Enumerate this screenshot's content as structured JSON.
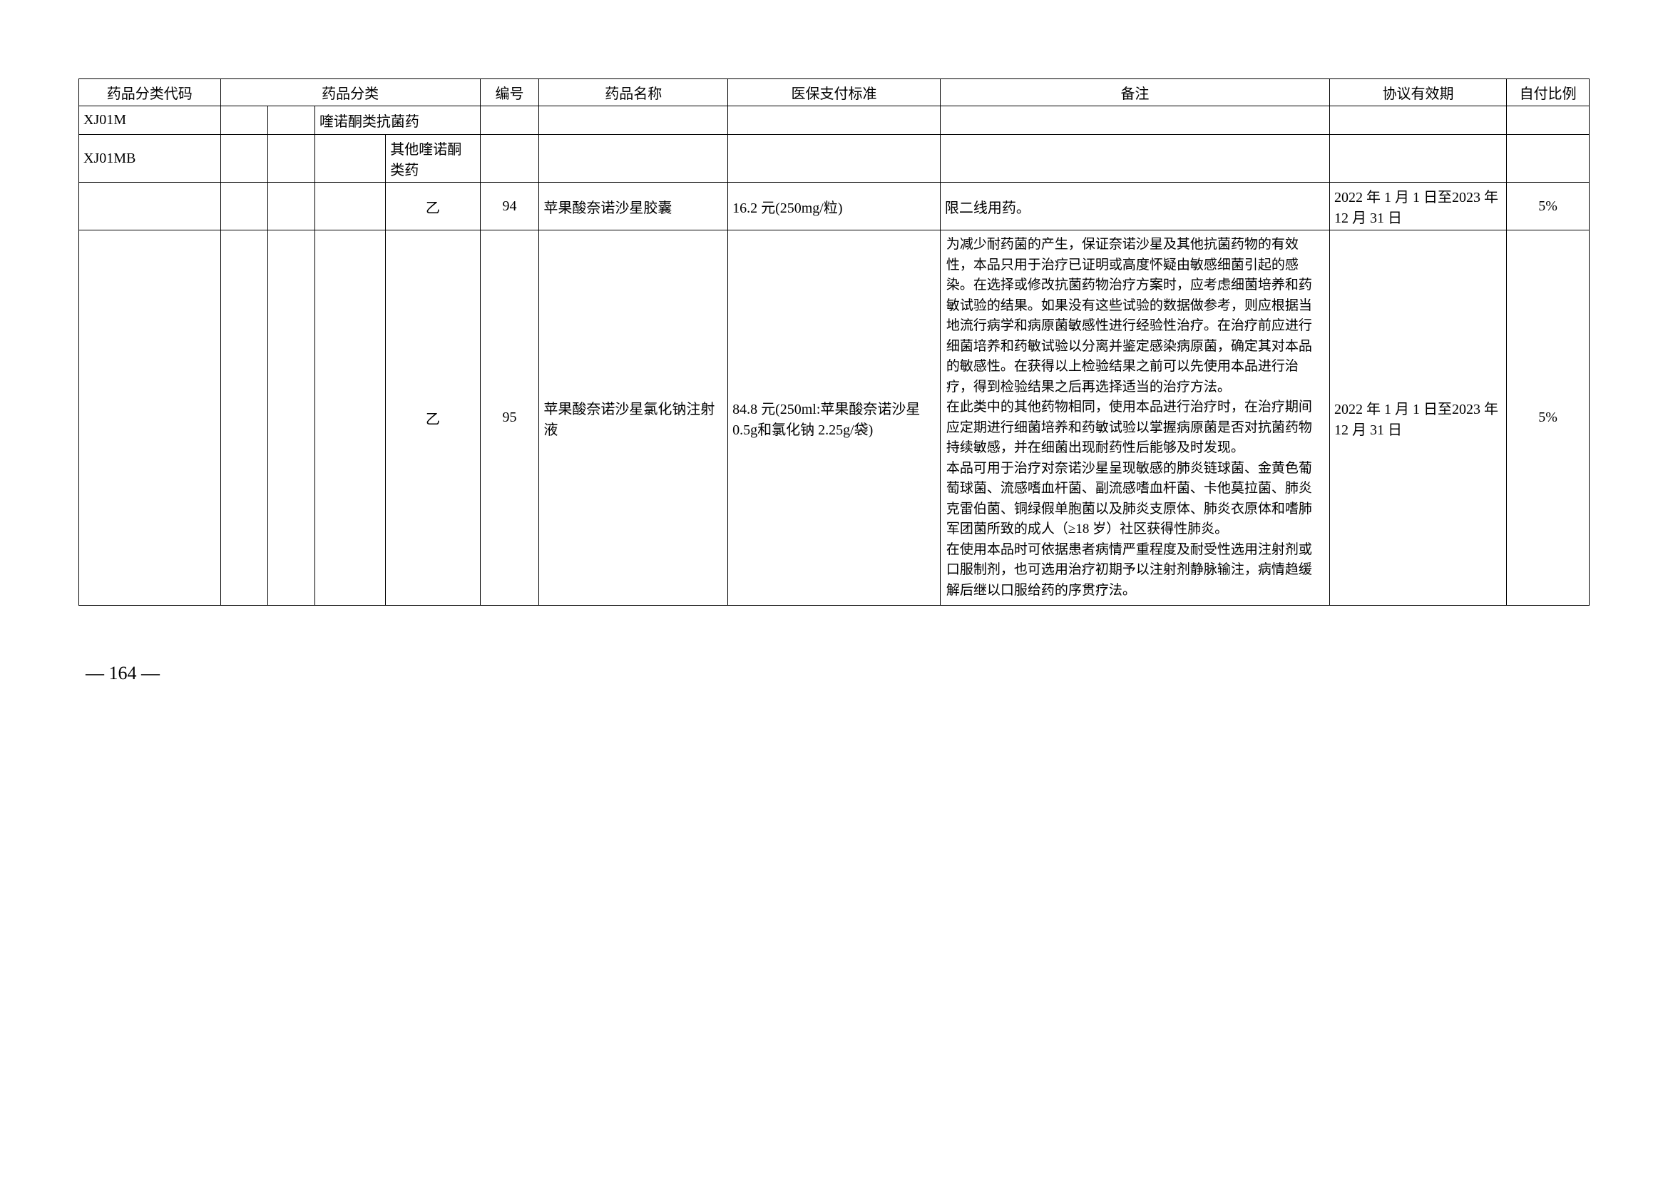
{
  "headers": {
    "code": "药品分类代码",
    "category": "药品分类",
    "num": "编号",
    "name": "药品名称",
    "std": "医保支付标准",
    "remark": "备注",
    "period": "协议有效期",
    "ratio": "自付比例"
  },
  "rows": {
    "r1": {
      "code": "XJ01M",
      "cat3": "喹诺酮类抗菌药"
    },
    "r2": {
      "code": "XJ01MB",
      "cat4": "其他喹诺酮类药"
    },
    "r3": {
      "class": "乙",
      "num": "94",
      "name": "苹果酸奈诺沙星胶囊",
      "std": "16.2 元(250mg/粒)",
      "remark": "限二线用药。",
      "period": "2022 年 1 月 1 日至2023 年 12 月 31 日",
      "ratio": "5%"
    },
    "r4": {
      "class": "乙",
      "num": "95",
      "name": "苹果酸奈诺沙星氯化钠注射液",
      "std": "84.8 元(250ml:苹果酸奈诺沙星 0.5g和氯化钠 2.25g/袋)",
      "remark": "为减少耐药菌的产生，保证奈诺沙星及其他抗菌药物的有效性，本品只用于治疗已证明或高度怀疑由敏感细菌引起的感染。在选择或修改抗菌药物治疗方案时，应考虑细菌培养和药敏试验的结果。如果没有这些试验的数据做参考，则应根据当地流行病学和病原菌敏感性进行经验性治疗。在治疗前应进行细菌培养和药敏试验以分离并鉴定感染病原菌，确定其对本品的敏感性。在获得以上检验结果之前可以先使用本品进行治疗，得到检验结果之后再选择适当的治疗方法。\n在此类中的其他药物相同，使用本品进行治疗时，在治疗期间应定期进行细菌培养和药敏试验以掌握病原菌是否对抗菌药物持续敏感，并在细菌出现耐药性后能够及时发现。\n本品可用于治疗对奈诺沙星呈现敏感的肺炎链球菌、金黄色葡萄球菌、流感嗜血杆菌、副流感嗜血杆菌、卡他莫拉菌、肺炎克雷伯菌、铜绿假单胞菌以及肺炎支原体、肺炎衣原体和嗜肺军团菌所致的成人（≥18 岁）社区获得性肺炎。\n在使用本品时可依据患者病情严重程度及耐受性选用注射剂或口服制剂，也可选用治疗初期予以注射剂静脉输注，病情趋缓解后继以口服给药的序贯疗法。",
      "period": "2022 年 1 月 1 日至2023 年 12 月 31 日",
      "ratio": "5%"
    }
  },
  "pageNum": "— 164 —"
}
